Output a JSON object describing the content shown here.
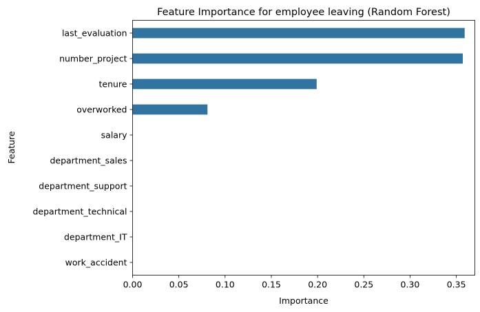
{
  "chart_data": {
    "type": "bar",
    "orientation": "horizontal",
    "title": "Feature Importance for employee leaving (Random Forest)",
    "xlabel": "Importance",
    "ylabel": "Feature",
    "categories": [
      "last_evaluation",
      "number_project",
      "tenure",
      "overworked",
      "salary",
      "department_sales",
      "department_support",
      "department_technical",
      "department_IT",
      "work_accident"
    ],
    "values": [
      0.359,
      0.357,
      0.199,
      0.081,
      0.0,
      0.0,
      0.0,
      0.0,
      0.0,
      0.0
    ],
    "xlim": [
      0,
      0.37
    ],
    "xticks": [
      0.0,
      0.05,
      0.1,
      0.15,
      0.2,
      0.25,
      0.3,
      0.35
    ],
    "xtick_labels": [
      "0.00",
      "0.05",
      "0.10",
      "0.15",
      "0.20",
      "0.25",
      "0.30",
      "0.35"
    ],
    "grid": false,
    "bar_color": "#3274a1"
  }
}
